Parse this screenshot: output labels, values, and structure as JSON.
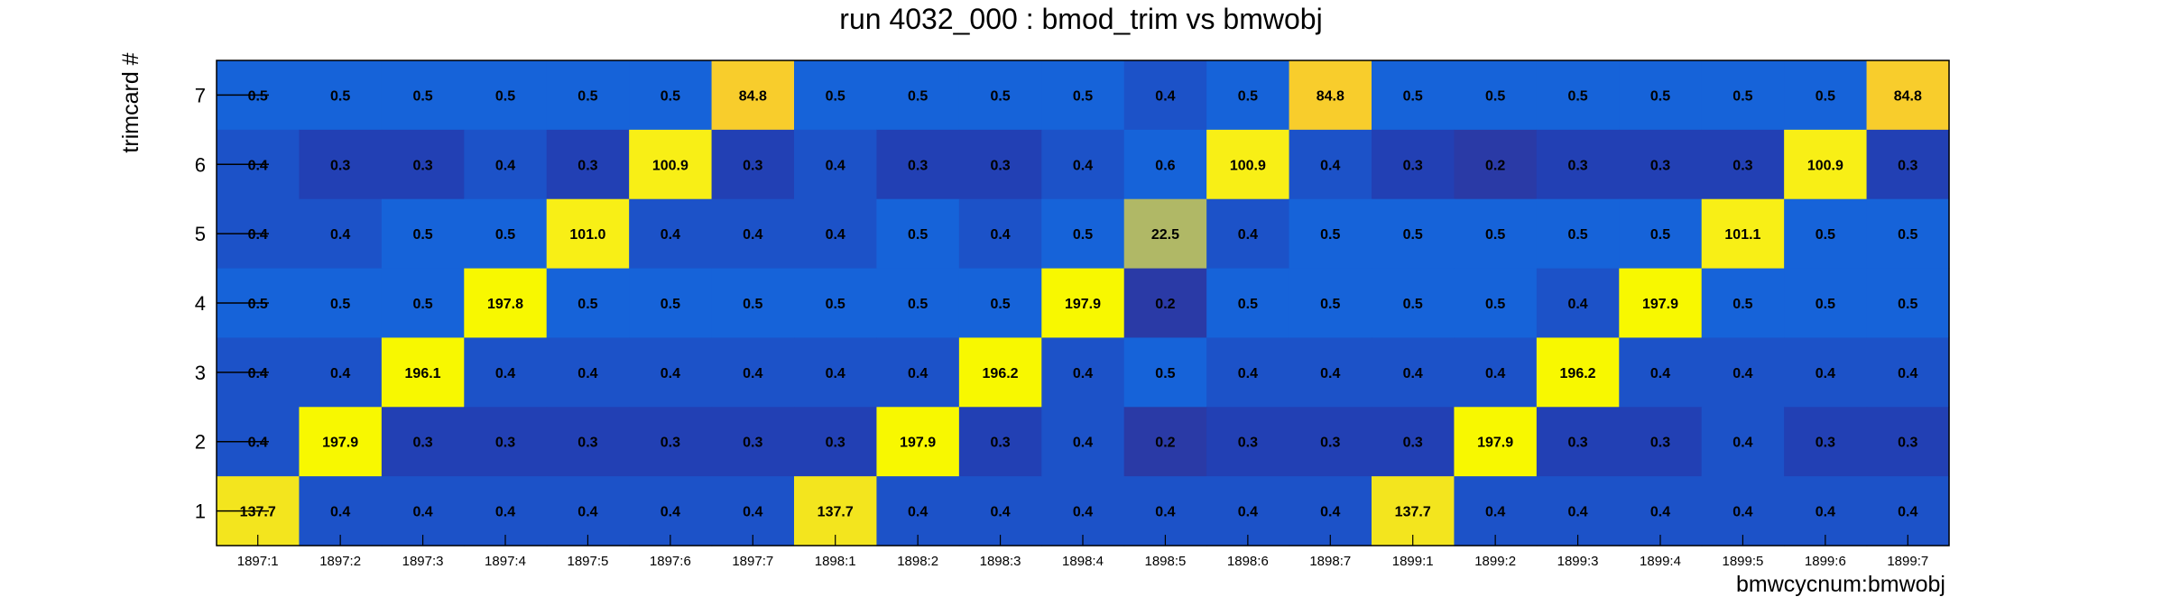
{
  "chart_data": {
    "type": "heatmap",
    "title": "run 4032_000 : bmod_trim vs bmwobj",
    "xlabel": "bmwcycnum:bmwobj",
    "ylabel": "trimcard #",
    "x_categories": [
      "1897:1",
      "1897:2",
      "1897:3",
      "1897:4",
      "1897:5",
      "1897:6",
      "1897:7",
      "1898:1",
      "1898:2",
      "1898:3",
      "1898:4",
      "1898:5",
      "1898:6",
      "1898:7",
      "1899:1",
      "1899:2",
      "1899:3",
      "1899:4",
      "1899:5",
      "1899:6",
      "1899:7"
    ],
    "y_categories": [
      "1",
      "2",
      "3",
      "4",
      "5",
      "6",
      "7"
    ],
    "rows": [
      {
        "y": "7",
        "values": [
          "0.5",
          "0.5",
          "0.5",
          "0.5",
          "0.5",
          "0.5",
          "84.8",
          "0.5",
          "0.5",
          "0.5",
          "0.5",
          "0.4",
          "0.5",
          "84.8",
          "0.5",
          "0.5",
          "0.5",
          "0.5",
          "0.5",
          "0.5",
          "84.8"
        ]
      },
      {
        "y": "6",
        "values": [
          "0.4",
          "0.3",
          "0.3",
          "0.4",
          "0.3",
          "100.9",
          "0.3",
          "0.4",
          "0.3",
          "0.3",
          "0.4",
          "0.6",
          "100.9",
          "0.4",
          "0.3",
          "0.2",
          "0.3",
          "0.3",
          "0.3",
          "100.9",
          "0.3"
        ]
      },
      {
        "y": "5",
        "values": [
          "0.4",
          "0.4",
          "0.5",
          "0.5",
          "101.0",
          "0.4",
          "0.4",
          "0.4",
          "0.5",
          "0.4",
          "0.5",
          "22.5",
          "0.4",
          "0.5",
          "0.5",
          "0.5",
          "0.5",
          "0.5",
          "101.1",
          "0.5",
          "0.5"
        ]
      },
      {
        "y": "4",
        "values": [
          "0.5",
          "0.5",
          "0.5",
          "197.8",
          "0.5",
          "0.5",
          "0.5",
          "0.5",
          "0.5",
          "0.5",
          "197.9",
          "0.2",
          "0.5",
          "0.5",
          "0.5",
          "0.5",
          "0.4",
          "197.9",
          "0.5",
          "0.5",
          "0.5"
        ]
      },
      {
        "y": "3",
        "values": [
          "0.4",
          "0.4",
          "196.1",
          "0.4",
          "0.4",
          "0.4",
          "0.4",
          "0.4",
          "0.4",
          "196.2",
          "0.4",
          "0.5",
          "0.4",
          "0.4",
          "0.4",
          "0.4",
          "196.2",
          "0.4",
          "0.4",
          "0.4",
          "0.4"
        ]
      },
      {
        "y": "2",
        "values": [
          "0.4",
          "197.9",
          "0.3",
          "0.3",
          "0.3",
          "0.3",
          "0.3",
          "0.3",
          "197.9",
          "0.3",
          "0.4",
          "0.2",
          "0.3",
          "0.3",
          "0.3",
          "197.9",
          "0.3",
          "0.3",
          "0.4",
          "0.3",
          "0.3"
        ]
      },
      {
        "y": "1",
        "values": [
          "137.7",
          "0.4",
          "0.4",
          "0.4",
          "0.4",
          "0.4",
          "0.4",
          "137.7",
          "0.4",
          "0.4",
          "0.4",
          "0.4",
          "0.4",
          "0.4",
          "137.7",
          "0.4",
          "0.4",
          "0.4",
          "0.4",
          "0.4",
          "0.4"
        ]
      }
    ]
  }
}
